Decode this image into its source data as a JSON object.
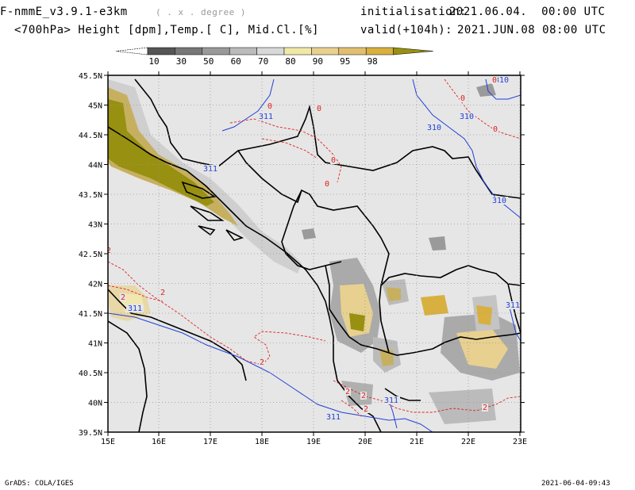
{
  "header": {
    "model": "F-nmmE_v3.9.1-e3km",
    "degree_note": "( . x . degree )",
    "level_vars": "<700hPa> Height [dpm],Temp.[ C], Mid.Cl.[%]",
    "init_label": "initialisation:",
    "init_value": "2021.06.04.  00:00 UTC",
    "valid_label": "valid(+104h):",
    "valid_value": "2021.JUN.08 08:00 UTC"
  },
  "colorbar": {
    "labels": [
      "10",
      "30",
      "50",
      "60",
      "70",
      "80",
      "90",
      "95",
      "98"
    ],
    "colors": [
      "#555555",
      "#777777",
      "#999999",
      "#bbbbbb",
      "#d8d8d8",
      "#f0e8a8",
      "#e8d090",
      "#e0c070",
      "#d8b040",
      "#989010"
    ]
  },
  "map": {
    "lat_labels": [
      "45.5N",
      "45N",
      "44.5N",
      "44N",
      "43.5N",
      "43N",
      "42.5N",
      "42N",
      "41.5N",
      "41N",
      "40.5N",
      "40N",
      "39.5N"
    ],
    "lon_labels": [
      "15E",
      "16E",
      "17E",
      "18E",
      "19E",
      "20E",
      "21E",
      "22E",
      "23E"
    ],
    "height_labels": [
      "311",
      "310",
      "311",
      "310",
      "310",
      "310",
      "311",
      "311",
      "311",
      "311"
    ],
    "temp_labels": [
      "0",
      "0",
      "0",
      "0",
      "0",
      "0",
      "0",
      "2",
      "2",
      "2",
      "2",
      "2",
      "2",
      "2",
      "2"
    ]
  },
  "footer": {
    "left": "GrADS: COLA/IGES",
    "right": "2021-06-04-09:43"
  }
}
